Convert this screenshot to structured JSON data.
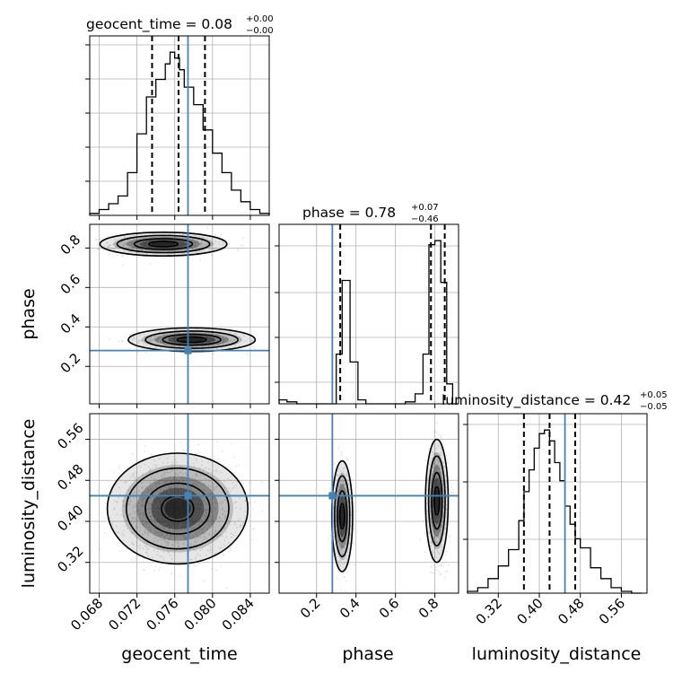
{
  "colors": {
    "truth": "#4682b4",
    "hist": "#000000",
    "grid": "#b0b0b0",
    "density": "#000000"
  },
  "chart_data": [
    {
      "type": "histogram",
      "panel": "geocent_time",
      "title": {
        "main": "geocent_time = 0.08",
        "sup": "+0.00",
        "sub": "−0.00"
      },
      "xlim": [
        0.067,
        0.086
      ],
      "bin_edges": [
        0.067,
        0.068,
        0.069,
        0.07,
        0.071,
        0.072,
        0.073,
        0.074,
        0.075,
        0.0755,
        0.076,
        0.0765,
        0.077,
        0.078,
        0.079,
        0.08,
        0.081,
        0.082,
        0.083,
        0.084,
        0.085,
        0.086
      ],
      "counts": [
        1,
        3,
        6,
        10,
        22,
        42,
        61,
        70,
        78,
        84,
        81,
        75,
        66,
        57,
        44,
        32,
        22,
        13,
        7,
        3,
        1
      ],
      "quantiles": [
        0.0736,
        0.0764,
        0.0792
      ],
      "truth": 0.0774
    },
    {
      "type": "histogram",
      "panel": "phase",
      "title": {
        "main": "phase = 0.78",
        "sup": "+0.07",
        "sub": "−0.46"
      },
      "xlim": [
        0.01,
        0.92
      ],
      "bin_edges": [
        0.01,
        0.05,
        0.1,
        0.15,
        0.2,
        0.25,
        0.3,
        0.33,
        0.37,
        0.41,
        0.45,
        0.5,
        0.55,
        0.6,
        0.65,
        0.7,
        0.74,
        0.77,
        0.8,
        0.83,
        0.86,
        0.89,
        0.92
      ],
      "counts": [
        2,
        1,
        0,
        0,
        0,
        0,
        25,
        62,
        21,
        2,
        0,
        0,
        0,
        0,
        1,
        5,
        25,
        80,
        82,
        61,
        10,
        0
      ],
      "quantiles": [
        0.32,
        0.78,
        0.85
      ],
      "truth": 0.28
    },
    {
      "type": "histogram",
      "panel": "luminosity_distance",
      "title": {
        "main": "luminosity_distance = 0.42",
        "sup": "+0.05",
        "sub": "−0.05"
      },
      "xlim": [
        0.26,
        0.61
      ],
      "bin_edges": [
        0.26,
        0.28,
        0.3,
        0.32,
        0.34,
        0.36,
        0.37,
        0.38,
        0.39,
        0.4,
        0.41,
        0.42,
        0.43,
        0.44,
        0.45,
        0.46,
        0.47,
        0.48,
        0.5,
        0.52,
        0.54,
        0.56,
        0.58,
        0.6
      ],
      "counts": [
        1,
        3,
        8,
        15,
        24,
        40,
        56,
        68,
        80,
        88,
        90,
        84,
        72,
        62,
        48,
        38,
        30,
        25,
        14,
        8,
        3,
        1,
        0
      ],
      "quantiles": [
        0.37,
        0.42,
        0.47
      ],
      "truth": 0.45
    },
    {
      "type": "scatter",
      "panel": "geocent_time vs phase",
      "xlabel": "",
      "ylabel": "phase",
      "xlim": [
        0.067,
        0.086
      ],
      "ylim": [
        0.01,
        0.92
      ],
      "yticks": [
        0.2,
        0.4,
        0.6,
        0.8
      ],
      "truth": [
        0.0774,
        0.28
      ],
      "modes": [
        {
          "x": 0.0748,
          "y": 0.82,
          "sx": 0.0028,
          "sy": 0.025,
          "weight": 0.6
        },
        {
          "x": 0.0778,
          "y": 0.335,
          "sx": 0.0028,
          "sy": 0.025,
          "weight": 0.4
        }
      ]
    },
    {
      "type": "scatter",
      "panel": "geocent_time vs luminosity_distance",
      "xlabel": "geocent_time",
      "ylabel": "luminosity_distance",
      "xlim": [
        0.067,
        0.086
      ],
      "ylim": [
        0.26,
        0.61
      ],
      "xticks": [
        0.068,
        0.072,
        0.076,
        0.08,
        0.084
      ],
      "xtick_labels": [
        "0.068",
        "0.072",
        "0.076",
        "0.080",
        "0.084"
      ],
      "yticks": [
        0.32,
        0.4,
        0.48,
        0.56
      ],
      "ytick_labels": [
        "0.32",
        "0.40",
        "0.48",
        "0.56"
      ],
      "truth": [
        0.0774,
        0.45
      ],
      "modes": [
        {
          "x": 0.0763,
          "y": 0.425,
          "sx": 0.0031,
          "sy": 0.045,
          "weight": 1.0
        }
      ]
    },
    {
      "type": "scatter",
      "panel": "phase vs luminosity_distance",
      "xlabel": "phase",
      "ylabel": "",
      "xlim": [
        0.01,
        0.92
      ],
      "ylim": [
        0.26,
        0.61
      ],
      "xticks": [
        0.2,
        0.4,
        0.6,
        0.8
      ],
      "xtick_labels": [
        "0.2",
        "0.4",
        "0.6",
        "0.8"
      ],
      "truth": [
        0.28,
        0.45
      ],
      "modes": [
        {
          "x": 0.33,
          "y": 0.41,
          "sx": 0.022,
          "sy": 0.045,
          "weight": 0.4
        },
        {
          "x": 0.81,
          "y": 0.44,
          "sx": 0.024,
          "sy": 0.05,
          "weight": 0.6
        }
      ]
    }
  ]
}
